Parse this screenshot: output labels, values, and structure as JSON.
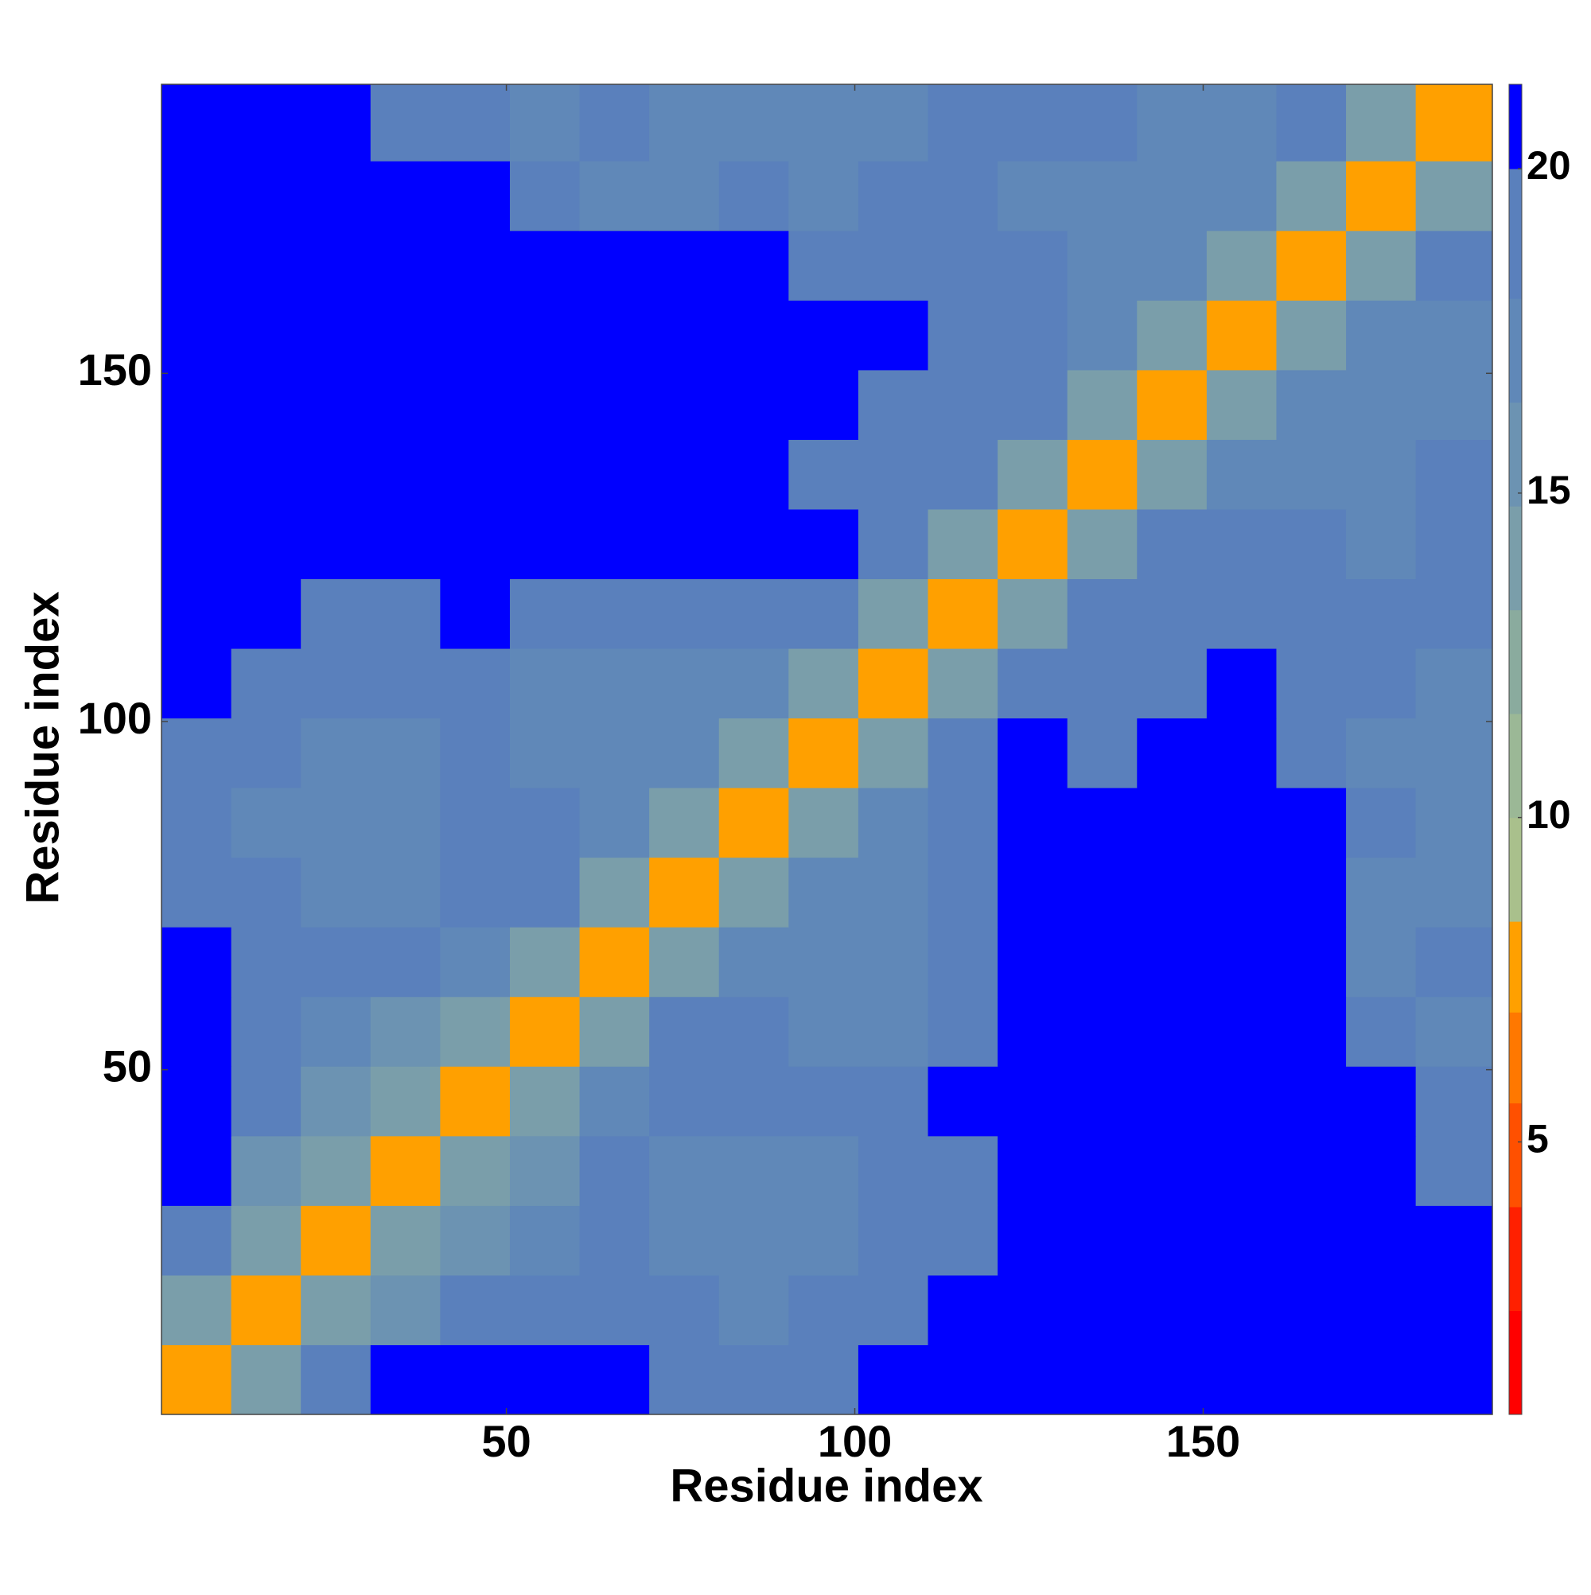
{
  "chart_data": {
    "type": "heatmap",
    "xlabel": "Residue index",
    "ylabel": "Residue index",
    "xlim": [
      0.5,
      191.5
    ],
    "ylim": [
      0.5,
      191.5
    ],
    "xticks": [
      50,
      100,
      150
    ],
    "yticks": [
      50,
      100,
      150
    ],
    "xbins": [
      0.5,
      10.5,
      20.5,
      30.5,
      40.5,
      50.5,
      60.5,
      70.5,
      80.5,
      90.5,
      100.5,
      110.5,
      120.5,
      130.5,
      140.5,
      150.5,
      160.5,
      170.5,
      180.5,
      191.5
    ],
    "ybins": [
      0.5,
      10.5,
      20.5,
      30.5,
      40.5,
      50.5,
      60.5,
      70.5,
      80.5,
      90.5,
      100.5,
      110.5,
      120.5,
      130.5,
      140.5,
      150.5,
      160.5,
      170.5,
      180.5,
      191.5
    ],
    "z": [
      [
        8,
        14,
        19,
        20,
        21,
        20,
        20,
        19,
        19,
        19,
        20,
        21,
        21,
        21,
        21,
        21,
        21,
        21,
        21
      ],
      [
        14,
        8,
        14,
        16,
        18,
        19,
        18,
        18,
        17,
        18,
        19,
        20,
        21,
        21,
        21,
        21,
        21,
        21,
        21
      ],
      [
        19,
        14,
        8,
        14,
        16,
        17,
        18,
        17,
        17,
        17,
        18,
        19,
        21,
        21,
        21,
        21,
        21,
        21,
        21
      ],
      [
        20,
        16,
        14,
        8,
        14,
        16,
        18,
        17,
        17,
        17,
        18,
        19,
        21,
        21,
        21,
        21,
        21,
        21,
        18
      ],
      [
        21,
        18,
        16,
        14,
        8,
        14,
        17,
        18,
        18,
        18,
        19,
        20,
        21,
        21,
        21,
        21,
        21,
        20,
        18
      ],
      [
        20,
        19,
        17,
        16,
        14,
        8,
        14,
        18,
        18,
        17,
        17,
        18,
        21,
        21,
        21,
        21,
        21,
        18,
        17
      ],
      [
        20,
        18,
        18,
        18,
        17,
        14,
        8,
        14,
        17,
        17,
        17,
        18,
        21,
        20,
        20,
        21,
        21,
        17,
        18
      ],
      [
        19,
        18,
        17,
        17,
        18,
        18,
        14,
        8,
        14,
        17,
        17,
        18,
        21,
        21,
        21,
        21,
        21,
        17,
        17
      ],
      [
        19,
        17,
        17,
        17,
        18,
        18,
        17,
        14,
        8,
        14,
        17,
        18,
        21,
        21,
        21,
        21,
        20,
        18,
        17
      ],
      [
        19,
        18,
        17,
        17,
        18,
        17,
        17,
        17,
        14,
        8,
        14,
        19,
        20,
        19,
        20,
        21,
        19,
        17,
        17
      ],
      [
        20,
        19,
        18,
        18,
        19,
        17,
        17,
        17,
        17,
        14,
        8,
        14,
        19,
        19,
        19,
        20,
        18,
        18,
        17
      ],
      [
        21,
        20,
        19,
        19,
        20,
        18,
        18,
        18,
        18,
        19,
        14,
        8,
        14,
        18,
        18,
        19,
        19,
        18,
        18
      ],
      [
        21,
        21,
        21,
        21,
        21,
        21,
        21,
        21,
        21,
        20,
        19,
        14,
        8,
        14,
        18,
        18,
        18,
        17,
        18
      ],
      [
        21,
        21,
        21,
        21,
        21,
        21,
        20,
        21,
        21,
        19,
        19,
        18,
        14,
        8,
        14,
        17,
        17,
        17,
        18
      ],
      [
        21,
        21,
        21,
        21,
        21,
        21,
        20,
        21,
        21,
        20,
        19,
        18,
        18,
        14,
        8,
        14,
        17,
        17,
        17
      ],
      [
        21,
        21,
        21,
        21,
        21,
        21,
        21,
        21,
        21,
        21,
        20,
        19,
        18,
        17,
        14,
        8,
        14,
        17,
        17
      ],
      [
        21,
        21,
        21,
        21,
        21,
        21,
        21,
        21,
        20,
        19,
        18,
        19,
        18,
        17,
        17,
        14,
        8,
        14,
        19
      ],
      [
        21,
        21,
        21,
        21,
        20,
        18,
        17,
        17,
        18,
        17,
        18,
        18,
        17,
        17,
        17,
        17,
        14,
        8,
        14
      ],
      [
        21,
        21,
        21,
        18,
        18,
        17,
        18,
        17,
        17,
        17,
        17,
        18,
        18,
        18,
        17,
        17,
        19,
        14,
        8
      ]
    ],
    "colorbar": {
      "clim": [
        0.8,
        21.3
      ],
      "ticks": [
        5,
        10,
        15,
        20
      ],
      "stops": [
        {
          "value": 0.8,
          "color": "#ff0000"
        },
        {
          "value": 2.4,
          "color": "#ff2000"
        },
        {
          "value": 4.0,
          "color": "#ff5000"
        },
        {
          "value": 5.6,
          "color": "#ff7800"
        },
        {
          "value": 7.0,
          "color": "#ffa000"
        },
        {
          "value": 8.4,
          "color": "#a9c08c"
        },
        {
          "value": 10.0,
          "color": "#9bb896"
        },
        {
          "value": 11.6,
          "color": "#8aab9e"
        },
        {
          "value": 13.2,
          "color": "#7a9eaa"
        },
        {
          "value": 14.8,
          "color": "#6c93b2"
        },
        {
          "value": 16.4,
          "color": "#6088b8"
        },
        {
          "value": 18.0,
          "color": "#5a80bc"
        },
        {
          "value": 20.0,
          "color": "#0000ff"
        }
      ]
    }
  }
}
